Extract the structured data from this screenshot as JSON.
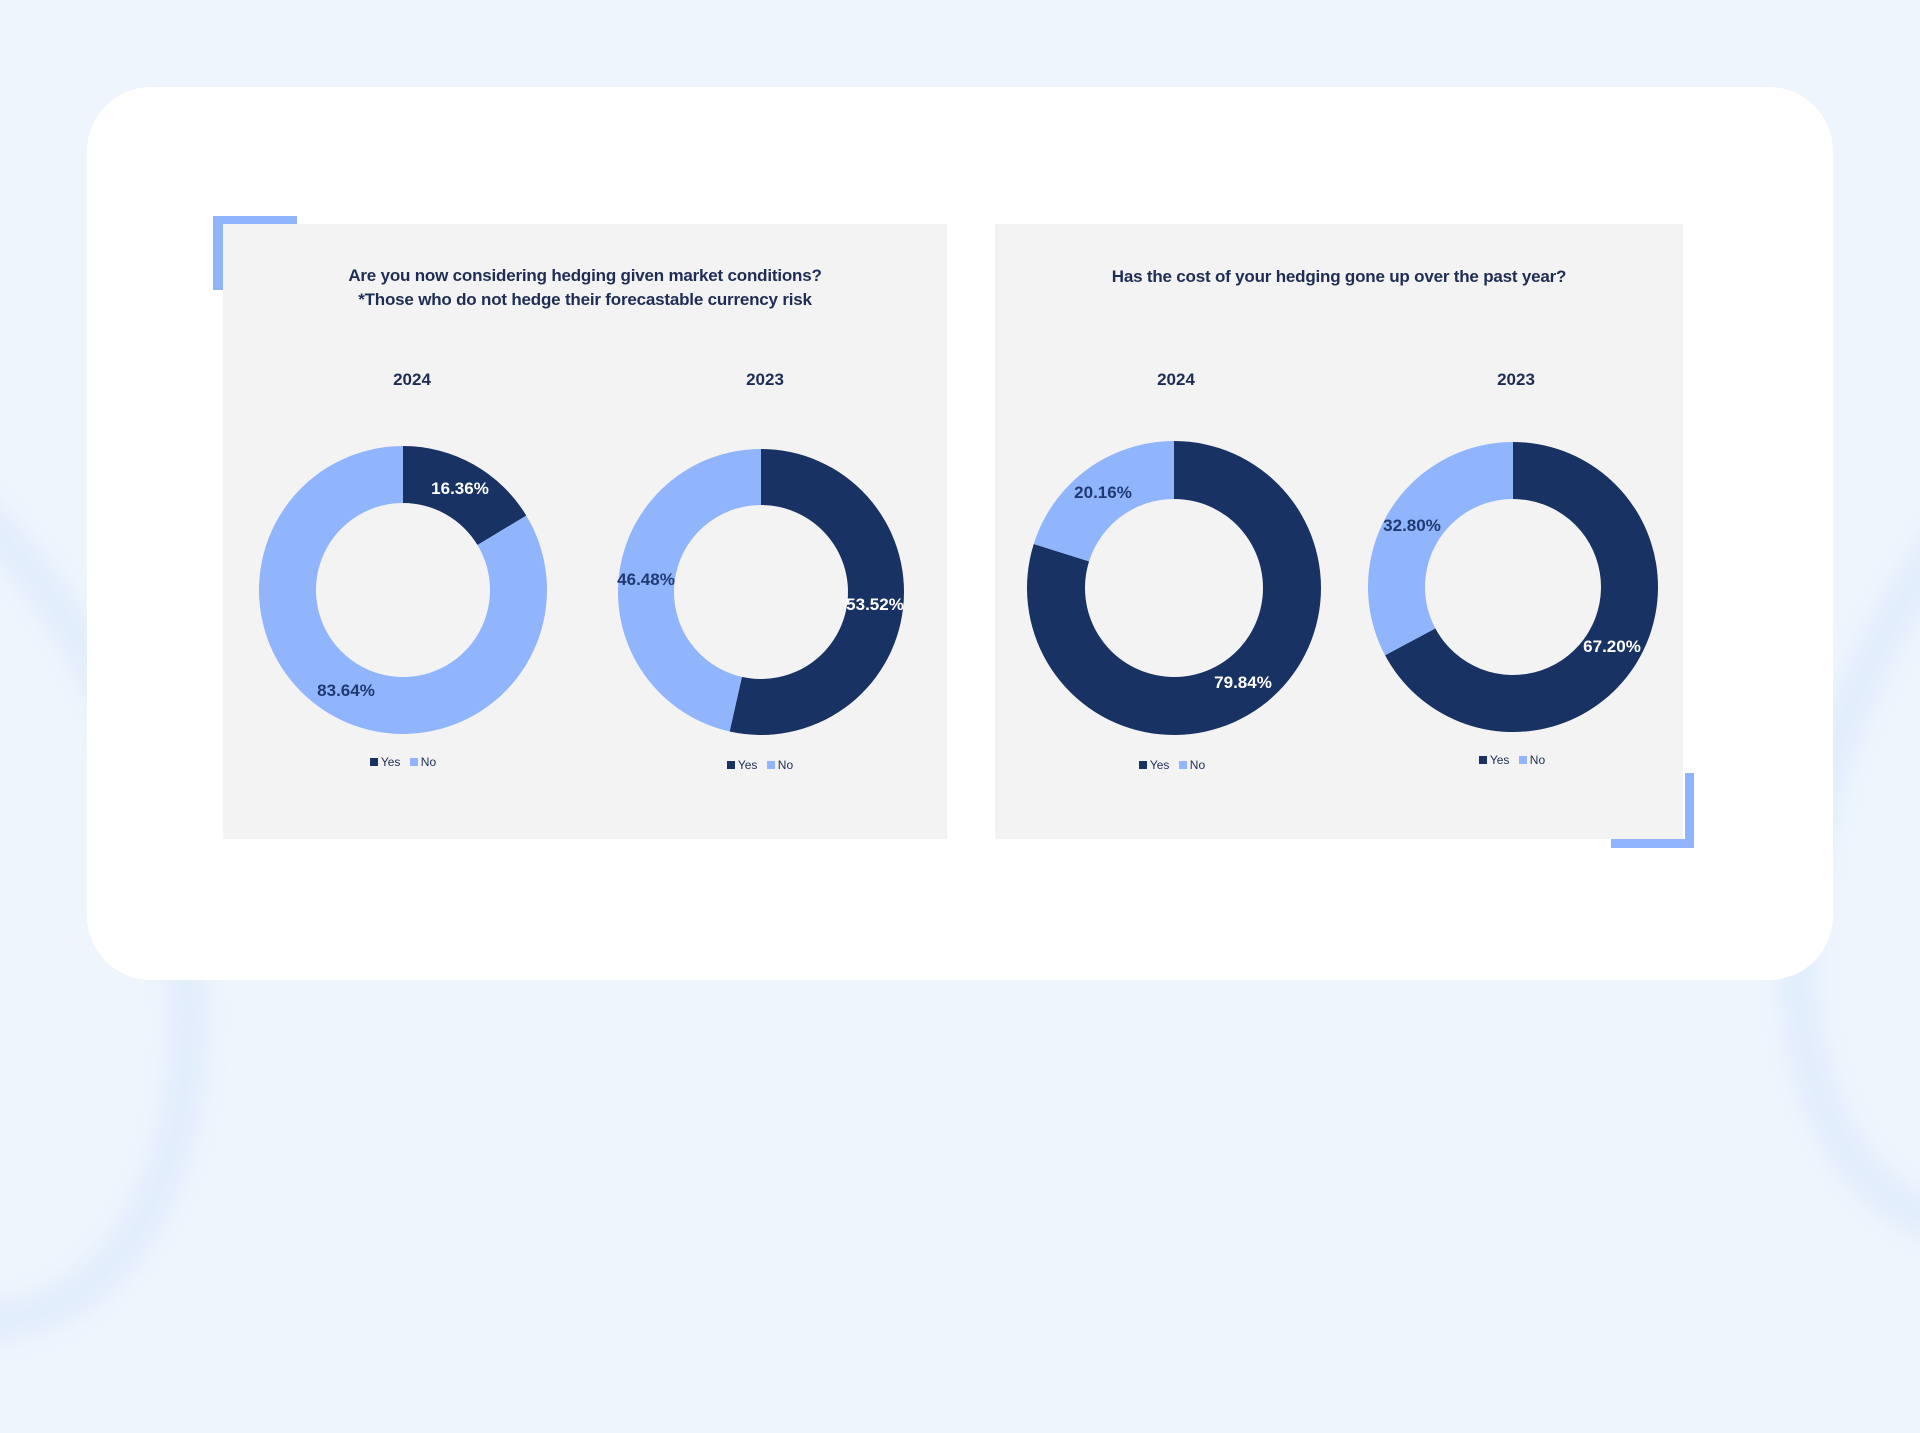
{
  "colors": {
    "yes": "#193264",
    "no": "#91b5fd",
    "panel_bg": "#f3f3f3",
    "accent": "#8fb4fb",
    "title": "#1f2d55"
  },
  "panels": [
    {
      "title_line1": "Are you now considering hedging given market conditions?",
      "title_line2": "*Those who do not hedge their forecastable currency risk",
      "charts": [
        {
          "year": "2024",
          "yes_label": "16.36%",
          "no_label": "83.64%",
          "legend_yes": "Yes",
          "legend_no": "No"
        },
        {
          "year": "2023",
          "yes_label": "53.52%",
          "no_label": "46.48%",
          "legend_yes": "Yes",
          "legend_no": "No"
        }
      ]
    },
    {
      "title_line1": "Has the cost of your hedging gone up over the past year?",
      "title_line2": "",
      "charts": [
        {
          "year": "2024",
          "yes_label": "79.84%",
          "no_label": "20.16%",
          "legend_yes": "Yes",
          "legend_no": "No"
        },
        {
          "year": "2023",
          "yes_label": "67.20%",
          "no_label": "32.80%",
          "legend_yes": "Yes",
          "legend_no": "No"
        }
      ]
    }
  ],
  "chart_data": [
    {
      "type": "pie",
      "variant": "donut",
      "title": "Are you now considering hedging given market conditions? *Those who do not hedge their forecastable currency risk",
      "subtitle": "2024",
      "categories": [
        "Yes",
        "No"
      ],
      "values": [
        16.36,
        83.64
      ],
      "legend_position": "bottom"
    },
    {
      "type": "pie",
      "variant": "donut",
      "title": "Are you now considering hedging given market conditions? *Those who do not hedge their forecastable currency risk",
      "subtitle": "2023",
      "categories": [
        "Yes",
        "No"
      ],
      "values": [
        53.52,
        46.48
      ],
      "legend_position": "bottom"
    },
    {
      "type": "pie",
      "variant": "donut",
      "title": "Has the cost of your hedging gone up over the past year?",
      "subtitle": "2024",
      "categories": [
        "Yes",
        "No"
      ],
      "values": [
        79.84,
        20.16
      ],
      "legend_position": "bottom"
    },
    {
      "type": "pie",
      "variant": "donut",
      "title": "Has the cost of your hedging gone up over the past year?",
      "subtitle": "2023",
      "categories": [
        "Yes",
        "No"
      ],
      "values": [
        67.2,
        32.8
      ],
      "legend_position": "bottom"
    }
  ]
}
